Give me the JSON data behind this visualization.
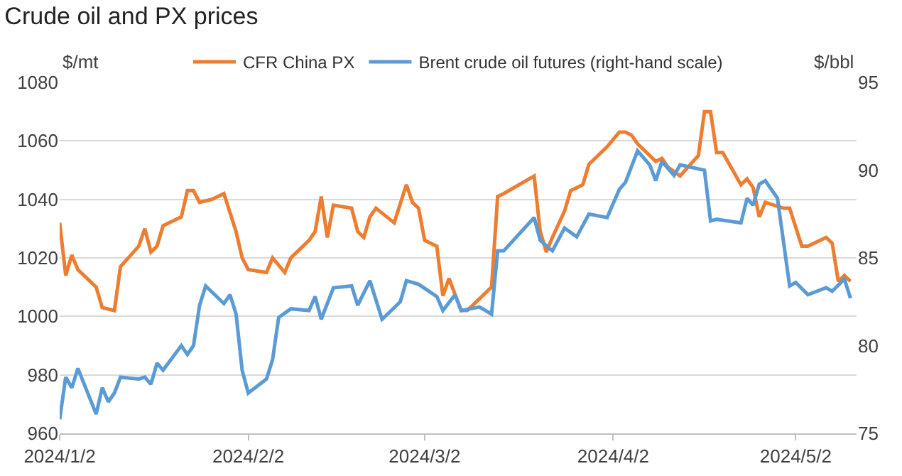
{
  "chart_data": {
    "type": "line",
    "title": "Crude oil and PX prices",
    "ylabel": "$/mt",
    "y2label": "$/bbl",
    "xlim": [
      "2024-01-02",
      "2024-05-12"
    ],
    "xticks": [
      {
        "value": "2024-01-02",
        "label": "2024/1/2"
      },
      {
        "value": "2024-02-02",
        "label": "2024/2/2"
      },
      {
        "value": "2024-03-02",
        "label": "2024/3/2"
      },
      {
        "value": "2024-04-02",
        "label": "2024/4/2"
      },
      {
        "value": "2024-05-02",
        "label": "2024/5/2"
      }
    ],
    "ylim": [
      960,
      1080
    ],
    "yticks": [
      960,
      980,
      1000,
      1020,
      1040,
      1060,
      1080
    ],
    "y2lim": [
      75,
      95
    ],
    "y2ticks": [
      75,
      80,
      85,
      90,
      95
    ],
    "grid": "y",
    "legend": "top",
    "line_style": "solid",
    "series": [
      {
        "name": "CFR China PX",
        "color": "#ed7d31",
        "x": [
          "2024-01-02",
          "2024-01-03",
          "2024-01-04",
          "2024-01-05",
          "2024-01-08",
          "2024-01-09",
          "2024-01-11",
          "2024-01-12",
          "2024-01-15",
          "2024-01-16",
          "2024-01-17",
          "2024-01-18",
          "2024-01-19",
          "2024-01-22",
          "2024-01-23",
          "2024-01-24",
          "2024-01-25",
          "2024-01-27",
          "2024-01-29",
          "2024-01-31",
          "2024-02-01",
          "2024-02-02",
          "2024-02-05",
          "2024-02-06",
          "2024-02-08",
          "2024-02-09",
          "2024-02-12",
          "2024-02-13",
          "2024-02-14",
          "2024-02-15",
          "2024-02-16",
          "2024-02-19",
          "2024-02-20",
          "2024-02-21",
          "2024-02-22",
          "2024-02-23",
          "2024-02-26",
          "2024-02-28",
          "2024-02-29",
          "2024-03-01",
          "2024-03-02",
          "2024-03-04",
          "2024-03-05",
          "2024-03-06",
          "2024-03-08",
          "2024-03-09",
          "2024-03-11",
          "2024-03-13",
          "2024-03-14",
          "2024-03-15",
          "2024-03-20",
          "2024-03-21",
          "2024-03-22",
          "2024-03-23",
          "2024-03-25",
          "2024-03-26",
          "2024-03-27",
          "2024-03-28",
          "2024-03-29",
          "2024-04-01",
          "2024-04-03",
          "2024-04-04",
          "2024-04-05",
          "2024-04-06",
          "2024-04-09",
          "2024-04-10",
          "2024-04-11",
          "2024-04-13",
          "2024-04-16",
          "2024-04-17",
          "2024-04-18",
          "2024-04-19",
          "2024-04-20",
          "2024-04-23",
          "2024-04-24",
          "2024-04-25",
          "2024-04-26",
          "2024-04-27",
          "2024-04-30",
          "2024-05-01",
          "2024-05-03",
          "2024-05-04",
          "2024-05-07",
          "2024-05-08",
          "2024-05-09",
          "2024-05-10",
          "2024-05-11"
        ],
        "values": [
          1032,
          1014,
          1021,
          1016,
          1010,
          1003,
          1002,
          1017,
          1024,
          1030,
          1022,
          1024,
          1031,
          1034,
          1043,
          1043,
          1039,
          1040,
          1042,
          1029,
          1020,
          1016,
          1015,
          1020,
          1015,
          1020,
          1026,
          1029,
          1041,
          1027,
          1038,
          1037,
          1029,
          1027,
          1034,
          1037,
          1032,
          1045,
          1039,
          1037,
          1026,
          1024,
          1007,
          1013,
          1002,
          1002,
          1006,
          1010,
          1041,
          1042,
          1048,
          1029,
          1022,
          1027,
          1036,
          1043,
          1044,
          1045,
          1052,
          1058,
          1063,
          1063,
          1062,
          1059,
          1053,
          1054,
          1051,
          1048,
          1055,
          1070,
          1070,
          1056,
          1056,
          1045,
          1047,
          1044,
          1034,
          1039,
          1037,
          1037,
          1024,
          1024,
          1027,
          1025,
          1012,
          1014,
          1012
        ]
      },
      {
        "name": "Brent crude oil futures (right-hand scale)",
        "color": "#5b9bd5",
        "axis": "y2",
        "x": [
          "2024-01-02",
          "2024-01-03",
          "2024-01-04",
          "2024-01-05",
          "2024-01-08",
          "2024-01-09",
          "2024-01-10",
          "2024-01-11",
          "2024-01-12",
          "2024-01-15",
          "2024-01-16",
          "2024-01-17",
          "2024-01-18",
          "2024-01-19",
          "2024-01-22",
          "2024-01-23",
          "2024-01-24",
          "2024-01-25",
          "2024-01-26",
          "2024-01-29",
          "2024-01-30",
          "2024-01-31",
          "2024-02-01",
          "2024-02-02",
          "2024-02-05",
          "2024-02-06",
          "2024-02-07",
          "2024-02-09",
          "2024-02-12",
          "2024-02-13",
          "2024-02-14",
          "2024-02-16",
          "2024-02-19",
          "2024-02-20",
          "2024-02-22",
          "2024-02-24",
          "2024-02-27",
          "2024-02-28",
          "2024-03-01",
          "2024-03-04",
          "2024-03-05",
          "2024-03-07",
          "2024-03-08",
          "2024-03-11",
          "2024-03-13",
          "2024-03-14",
          "2024-03-15",
          "2024-03-20",
          "2024-03-21",
          "2024-03-23",
          "2024-03-25",
          "2024-03-27",
          "2024-03-29",
          "2024-04-01",
          "2024-04-03",
          "2024-04-04",
          "2024-04-06",
          "2024-04-08",
          "2024-04-09",
          "2024-04-10",
          "2024-04-12",
          "2024-04-13",
          "2024-04-17",
          "2024-04-18",
          "2024-04-19",
          "2024-04-23",
          "2024-04-24",
          "2024-04-25",
          "2024-04-26",
          "2024-04-27",
          "2024-04-29",
          "2024-05-01",
          "2024-05-02",
          "2024-05-04",
          "2024-05-07",
          "2024-05-08",
          "2024-05-10",
          "2024-05-11"
        ],
        "values": [
          75.8,
          78.2,
          77.6,
          78.7,
          76.1,
          77.6,
          76.8,
          77.3,
          78.2,
          78.1,
          78.2,
          77.8,
          79.0,
          78.6,
          80.0,
          79.5,
          80.0,
          82.3,
          83.4,
          82.4,
          82.9,
          81.8,
          78.6,
          77.3,
          78.1,
          79.2,
          81.6,
          82.1,
          82.0,
          82.8,
          81.5,
          83.3,
          83.4,
          82.3,
          83.7,
          81.5,
          82.5,
          83.7,
          83.5,
          82.8,
          82.0,
          82.9,
          82.0,
          82.2,
          81.8,
          85.4,
          85.4,
          87.3,
          86.0,
          85.4,
          86.7,
          86.2,
          87.5,
          87.3,
          88.9,
          89.3,
          91.1,
          90.3,
          89.4,
          90.5,
          89.7,
          90.3,
          90.0,
          87.1,
          87.2,
          87.0,
          88.4,
          88.0,
          89.2,
          89.4,
          88.4,
          83.4,
          83.6,
          82.9,
          83.3,
          83.1,
          83.8,
          82.7
        ]
      }
    ]
  }
}
